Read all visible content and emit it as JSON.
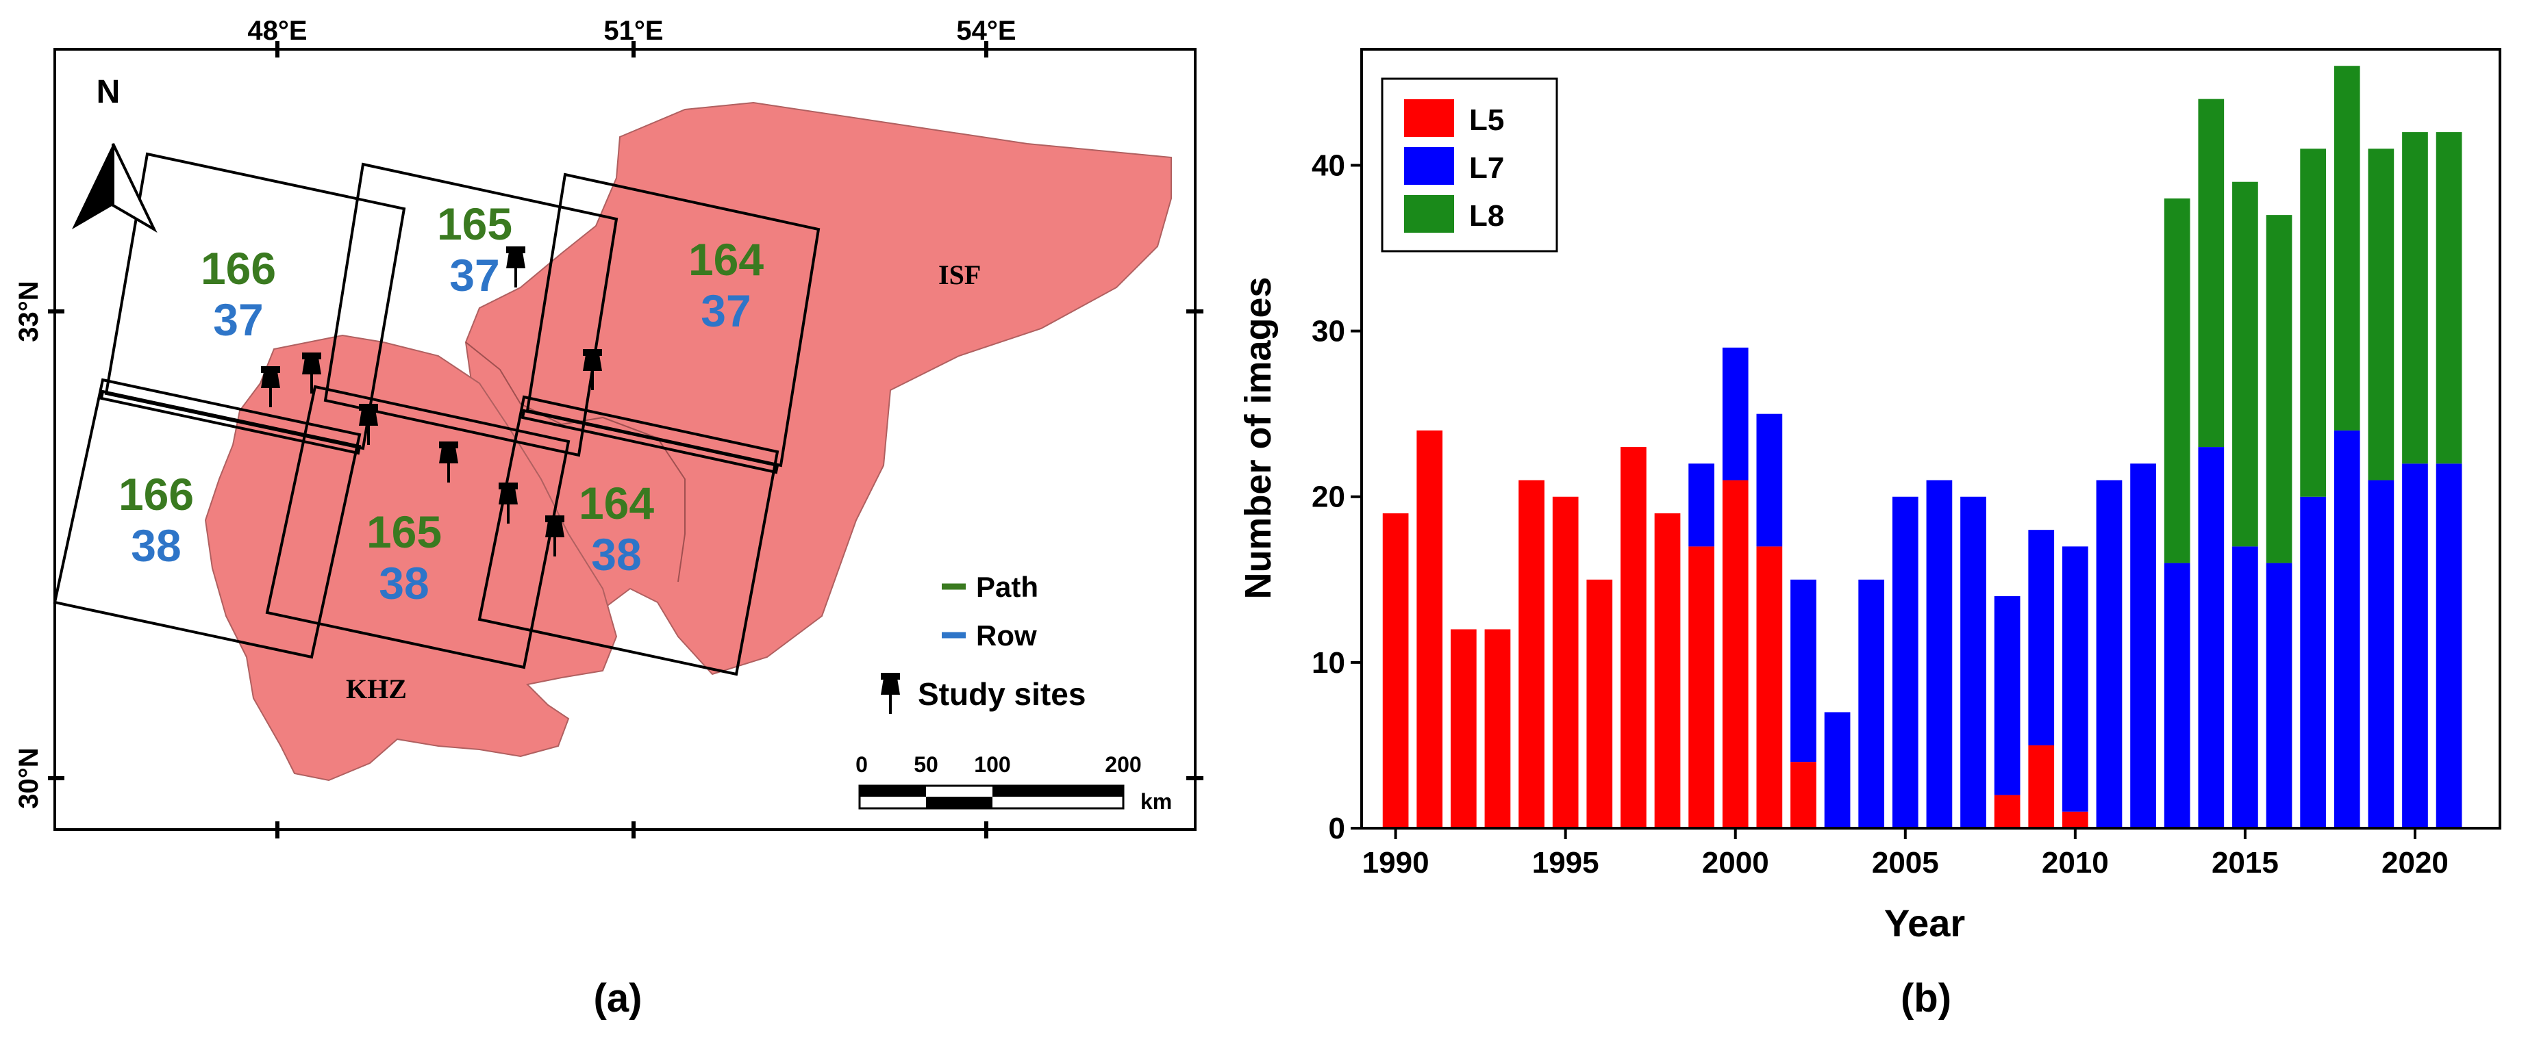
{
  "map": {
    "north_label": "N",
    "lon_labels": [
      "48°E",
      "51°E",
      "54°E"
    ],
    "lat_labels": [
      "33°N",
      "30°N"
    ],
    "city_labels": {
      "isf": "ISF",
      "khz": "KHZ"
    },
    "scenes": [
      {
        "path": "166",
        "row": "37"
      },
      {
        "path": "165",
        "row": "37"
      },
      {
        "path": "164",
        "row": "37"
      },
      {
        "path": "166",
        "row": "38"
      },
      {
        "path": "165",
        "row": "38"
      },
      {
        "path": "164",
        "row": "38"
      }
    ],
    "legend": {
      "path": "Path",
      "row": "Row",
      "sites": "Study sites"
    },
    "scalebar": {
      "ticks": [
        "0",
        "50",
        "100",
        "200"
      ],
      "unit": "km"
    },
    "region_color": "#f08080",
    "path_color": "#3a7a20",
    "row_color": "#2e75c8",
    "caption": "(a)"
  },
  "chart_data": {
    "type": "bar",
    "stacked": true,
    "categories": [
      1990,
      1991,
      1992,
      1993,
      1994,
      1995,
      1996,
      1997,
      1998,
      1999,
      2000,
      2001,
      2002,
      2003,
      2004,
      2005,
      2006,
      2007,
      2008,
      2009,
      2010,
      2011,
      2012,
      2013,
      2014,
      2015,
      2016,
      2017,
      2018,
      2019,
      2020,
      2021
    ],
    "series": [
      {
        "name": "L5",
        "color": "#ff0000",
        "values": [
          19,
          24,
          12,
          12,
          21,
          20,
          15,
          23,
          19,
          17,
          21,
          17,
          4,
          0,
          0,
          0,
          0,
          0,
          2,
          5,
          1,
          0,
          0,
          0,
          0,
          0,
          0,
          0,
          0,
          0,
          0,
          0
        ]
      },
      {
        "name": "L7",
        "color": "#0000ff",
        "values": [
          0,
          0,
          0,
          0,
          0,
          0,
          0,
          0,
          0,
          5,
          8,
          8,
          11,
          7,
          15,
          20,
          21,
          20,
          12,
          13,
          16,
          21,
          22,
          16,
          23,
          17,
          16,
          20,
          24,
          21,
          22,
          22
        ]
      },
      {
        "name": "L8",
        "color": "#1a8a1a",
        "values": [
          0,
          0,
          0,
          0,
          0,
          0,
          0,
          0,
          0,
          0,
          0,
          0,
          0,
          0,
          0,
          0,
          0,
          0,
          0,
          0,
          0,
          0,
          0,
          22,
          21,
          22,
          21,
          21,
          22,
          20,
          20,
          20
        ]
      }
    ],
    "xlabel": "Year",
    "ylabel": "Number of images",
    "xticks": [
      "1990",
      "1995",
      "2000",
      "2005",
      "2010",
      "2015",
      "2020"
    ],
    "yticks": [
      "0",
      "10",
      "20",
      "30",
      "40"
    ],
    "xlim": [
      1989,
      2022.5
    ],
    "ylim": [
      0,
      47
    ],
    "legend_position": "top-left",
    "caption": "(b)"
  }
}
